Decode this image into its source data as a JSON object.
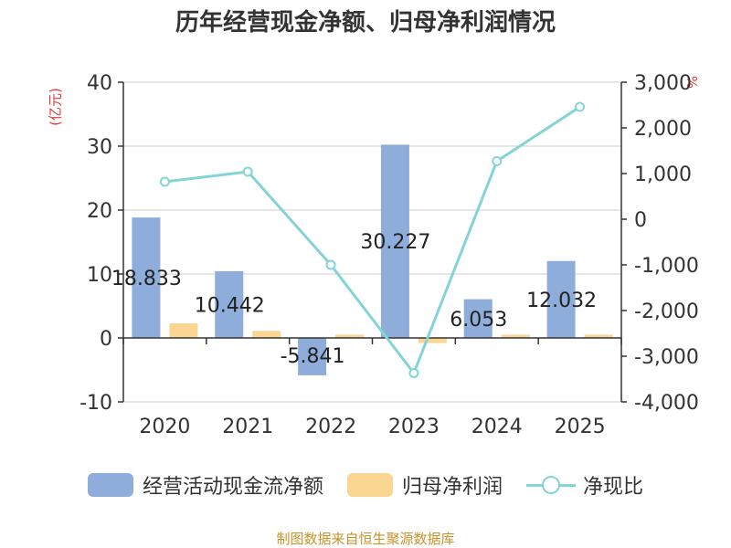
{
  "chart_data": {
    "type": "bar+line",
    "title": "历年经营现金净额、归母净利润情况",
    "left_axis_unit": "(亿元)",
    "right_axis_unit": "%",
    "categories": [
      "2020",
      "2021",
      "2022",
      "2023",
      "2024",
      "2025"
    ],
    "left_axis": {
      "range": [
        -10,
        40
      ],
      "ticks": [
        "-10",
        "0",
        "10",
        "20",
        "30",
        "40"
      ]
    },
    "right_axis": {
      "range": [
        -4000,
        3000
      ],
      "ticks": [
        "-4,000",
        "-3,000",
        "-2,000",
        "-1,000",
        "0",
        "1,000",
        "2,000",
        "3,000"
      ]
    },
    "series": [
      {
        "name": "经营活动现金流净额",
        "type": "bar",
        "axis": "left",
        "values": [
          18.833,
          10.442,
          -5.841,
          30.227,
          6.053,
          12.032
        ],
        "labels": [
          "18.833",
          "10.442",
          "-5.841",
          "30.227",
          "6.053",
          "12.032"
        ]
      },
      {
        "name": "归母净利润",
        "type": "bar",
        "axis": "left",
        "values": [
          2.3,
          1.1,
          0.5,
          -0.8,
          0.5,
          0.5
        ]
      },
      {
        "name": "净现比",
        "type": "line",
        "axis": "right",
        "values": [
          820,
          1040,
          -1000,
          -3370,
          1270,
          2460
        ]
      }
    ],
    "colors": {
      "bar1": "#8eadda",
      "bar2": "#fbd693",
      "line": "#84d3d6",
      "axis": "#333333",
      "grid": "#cccccc",
      "unit": "#e33b3b"
    },
    "legend_position": "bottom",
    "grid": true
  },
  "legend": {
    "items": [
      "经营活动现金流净额",
      "归母净利润",
      "净现比"
    ]
  },
  "source": "制图数据来自恒生聚源数据库"
}
